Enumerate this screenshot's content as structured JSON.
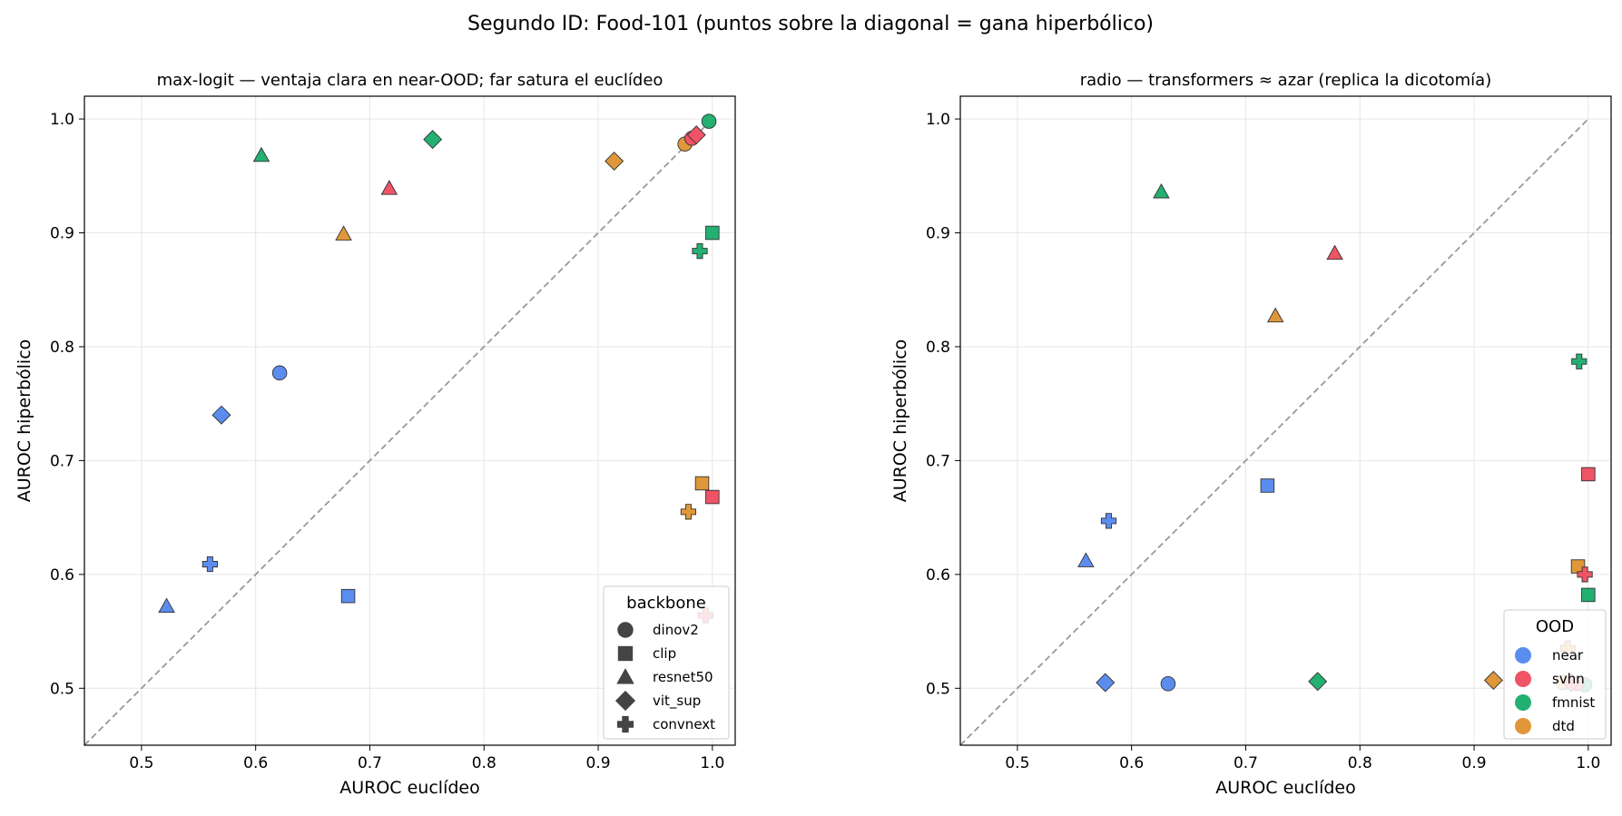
{
  "figure": {
    "title": "Segundo ID: Food-101 (puntos sobre la diagonal = gana hiperbólico)"
  },
  "colors": {
    "near": "#5b8def",
    "svhn": "#ef5466",
    "fmnist": "#23b071",
    "dtd": "#e0973a",
    "diagonal": "#999999",
    "grid": "#e6e6e6",
    "marker_edge": "#333333"
  },
  "chart_data": [
    {
      "type": "scatter",
      "title": "max-logit — ventaja clara en near-OOD; far satura el euclídeo",
      "xlabel": "AUROC euclídeo",
      "ylabel": "AUROC hiperbólico",
      "xlim": [
        0.45,
        1.02
      ],
      "ylim": [
        0.45,
        1.02
      ],
      "xticks": [
        "0.5",
        "0.6",
        "0.7",
        "0.8",
        "0.9",
        "1.0"
      ],
      "yticks": [
        "0.5",
        "0.6",
        "0.7",
        "0.8",
        "0.9",
        "1.0"
      ],
      "grid": true,
      "diagonal": true,
      "legend": {
        "title": "backbone",
        "position": "lower right",
        "kind": "backbone"
      },
      "points": [
        {
          "backbone": "dinov2",
          "ood": "near",
          "x": 0.621,
          "y": 0.777
        },
        {
          "backbone": "dinov2",
          "ood": "fmnist",
          "x": 0.997,
          "y": 0.998
        },
        {
          "backbone": "dinov2",
          "ood": "dtd",
          "x": 0.976,
          "y": 0.978
        },
        {
          "backbone": "dinov2",
          "ood": "svhn",
          "x": 0.982,
          "y": 0.983
        },
        {
          "backbone": "clip",
          "ood": "near",
          "x": 0.681,
          "y": 0.581
        },
        {
          "backbone": "clip",
          "ood": "fmnist",
          "x": 1.0,
          "y": 0.9
        },
        {
          "backbone": "clip",
          "ood": "dtd",
          "x": 0.991,
          "y": 0.68
        },
        {
          "backbone": "clip",
          "ood": "svhn",
          "x": 1.0,
          "y": 0.668
        },
        {
          "backbone": "resnet50",
          "ood": "near",
          "x": 0.522,
          "y": 0.572
        },
        {
          "backbone": "resnet50",
          "ood": "fmnist",
          "x": 0.605,
          "y": 0.968
        },
        {
          "backbone": "resnet50",
          "ood": "svhn",
          "x": 0.717,
          "y": 0.939
        },
        {
          "backbone": "resnet50",
          "ood": "dtd",
          "x": 0.677,
          "y": 0.899
        },
        {
          "backbone": "vit_sup",
          "ood": "near",
          "x": 0.57,
          "y": 0.74
        },
        {
          "backbone": "vit_sup",
          "ood": "fmnist",
          "x": 0.755,
          "y": 0.982
        },
        {
          "backbone": "vit_sup",
          "ood": "dtd",
          "x": 0.914,
          "y": 0.963
        },
        {
          "backbone": "vit_sup",
          "ood": "svhn",
          "x": 0.986,
          "y": 0.986
        },
        {
          "backbone": "convnext",
          "ood": "near",
          "x": 0.56,
          "y": 0.609
        },
        {
          "backbone": "convnext",
          "ood": "fmnist",
          "x": 0.989,
          "y": 0.884
        },
        {
          "backbone": "convnext",
          "ood": "dtd",
          "x": 0.979,
          "y": 0.655
        },
        {
          "backbone": "convnext",
          "ood": "svhn",
          "x": 0.994,
          "y": 0.564
        }
      ]
    },
    {
      "type": "scatter",
      "title": "radio — transformers ≈ azar (replica la dicotomía)",
      "xlabel": "AUROC euclídeo",
      "ylabel": "AUROC hiperbólico",
      "xlim": [
        0.45,
        1.02
      ],
      "ylim": [
        0.45,
        1.02
      ],
      "xticks": [
        "0.5",
        "0.6",
        "0.7",
        "0.8",
        "0.9",
        "1.0"
      ],
      "yticks": [
        "0.5",
        "0.6",
        "0.7",
        "0.8",
        "0.9",
        "1.0"
      ],
      "grid": true,
      "diagonal": true,
      "legend": {
        "title": "OOD",
        "position": "lower right",
        "kind": "ood",
        "entries": [
          "near",
          "svhn",
          "fmnist",
          "dtd"
        ]
      },
      "points": [
        {
          "backbone": "dinov2",
          "ood": "near",
          "x": 0.632,
          "y": 0.504
        },
        {
          "backbone": "dinov2",
          "ood": "fmnist",
          "x": 0.997,
          "y": 0.503
        },
        {
          "backbone": "dinov2",
          "ood": "dtd",
          "x": 0.978,
          "y": 0.505
        },
        {
          "backbone": "dinov2",
          "ood": "svhn",
          "x": 0.99,
          "y": 0.504
        },
        {
          "backbone": "clip",
          "ood": "near",
          "x": 0.719,
          "y": 0.678
        },
        {
          "backbone": "clip",
          "ood": "svhn",
          "x": 1.0,
          "y": 0.688
        },
        {
          "backbone": "clip",
          "ood": "dtd",
          "x": 0.991,
          "y": 0.607
        },
        {
          "backbone": "clip",
          "ood": "fmnist",
          "x": 1.0,
          "y": 0.582
        },
        {
          "backbone": "resnet50",
          "ood": "near",
          "x": 0.56,
          "y": 0.612
        },
        {
          "backbone": "resnet50",
          "ood": "fmnist",
          "x": 0.626,
          "y": 0.936
        },
        {
          "backbone": "resnet50",
          "ood": "svhn",
          "x": 0.778,
          "y": 0.882
        },
        {
          "backbone": "resnet50",
          "ood": "dtd",
          "x": 0.726,
          "y": 0.827
        },
        {
          "backbone": "vit_sup",
          "ood": "near",
          "x": 0.577,
          "y": 0.505
        },
        {
          "backbone": "vit_sup",
          "ood": "fmnist",
          "x": 0.763,
          "y": 0.506
        },
        {
          "backbone": "vit_sup",
          "ood": "dtd",
          "x": 0.917,
          "y": 0.507
        },
        {
          "backbone": "vit_sup",
          "ood": "svhn",
          "x": 0.985,
          "y": 0.505
        },
        {
          "backbone": "convnext",
          "ood": "near",
          "x": 0.58,
          "y": 0.647
        },
        {
          "backbone": "convnext",
          "ood": "fmnist",
          "x": 0.992,
          "y": 0.787
        },
        {
          "backbone": "convnext",
          "ood": "dtd",
          "x": 0.982,
          "y": 0.535
        },
        {
          "backbone": "convnext",
          "ood": "svhn",
          "x": 0.997,
          "y": 0.6
        }
      ]
    }
  ],
  "legend_backbone": {
    "title": "backbone",
    "entries": [
      {
        "label": "dinov2",
        "marker": "circle"
      },
      {
        "label": "clip",
        "marker": "square"
      },
      {
        "label": "resnet50",
        "marker": "triangle"
      },
      {
        "label": "vit_sup",
        "marker": "diamond"
      },
      {
        "label": "convnext",
        "marker": "plus"
      }
    ]
  },
  "legend_ood": {
    "title": "OOD",
    "entries": [
      {
        "label": "near",
        "color_key": "near"
      },
      {
        "label": "svhn",
        "color_key": "svhn"
      },
      {
        "label": "fmnist",
        "color_key": "fmnist"
      },
      {
        "label": "dtd",
        "color_key": "dtd"
      }
    ]
  }
}
